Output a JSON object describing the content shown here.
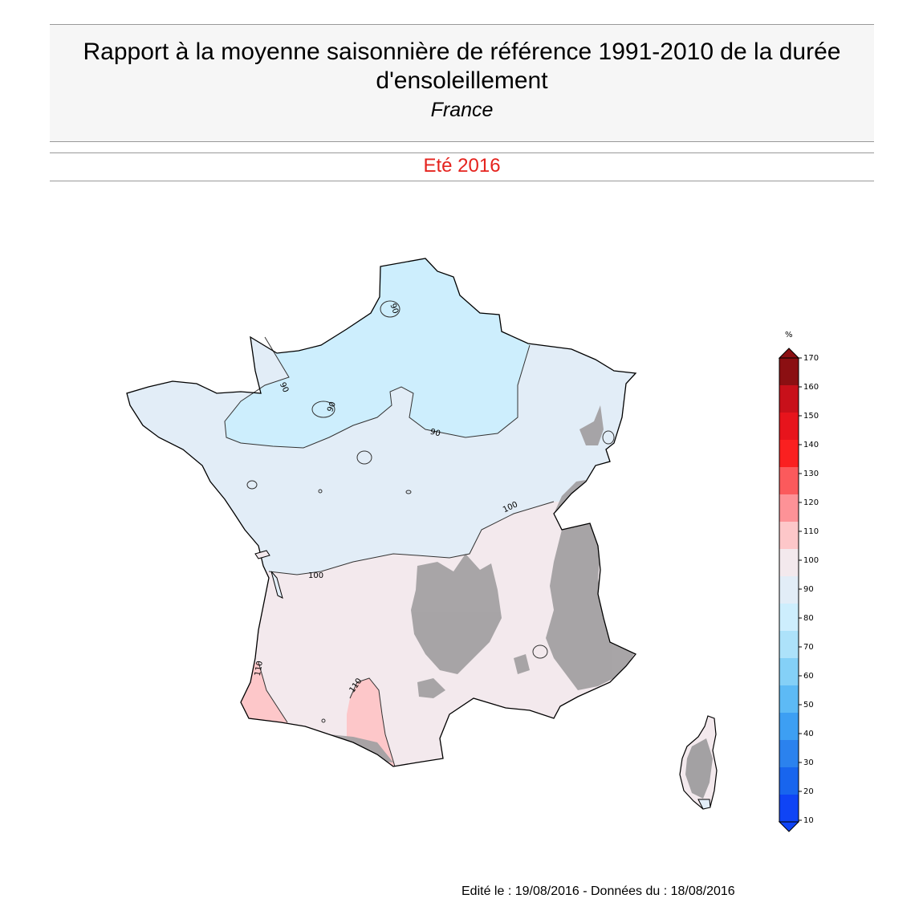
{
  "header": {
    "title": "Rapport à la moyenne saisonnière de référence 1991-2010 de la durée d'ensoleillement",
    "region": "France",
    "season": "Eté 2016"
  },
  "legend": {
    "unit": "%",
    "levels": [
      "170",
      "160",
      "150",
      "140",
      "130",
      "120",
      "110",
      "100",
      "90",
      "80",
      "70",
      "60",
      "50",
      "40",
      "30",
      "20",
      "10"
    ],
    "colors": [
      "#8b0f12",
      "#c8101a",
      "#e7141c",
      "#fa2020",
      "#fb5a5c",
      "#fd9297",
      "#fdc7c9",
      "#f3e9ed",
      "#e2edf7",
      "#cdeefd",
      "#ade2fa",
      "#84d0f7",
      "#5dbaf5",
      "#3d9ff3",
      "#2b82ee",
      "#1865ee",
      "#0f44f5"
    ]
  },
  "map": {
    "zone_colors": {
      "below_90": "#cdeefd",
      "90_100": "#e2edf7",
      "100_110": "#f3e9ed",
      "110_120": "#fdc7c9",
      "relief": "#a3a1a3"
    },
    "contour_labels": [
      {
        "text": "90"
      },
      {
        "text": "90"
      },
      {
        "text": "90"
      },
      {
        "text": "90"
      },
      {
        "text": "100"
      },
      {
        "text": "100"
      },
      {
        "text": "110"
      },
      {
        "text": "110"
      }
    ]
  },
  "footer": {
    "text": "Edité le : 19/08/2016 - Données du : 18/08/2016"
  }
}
